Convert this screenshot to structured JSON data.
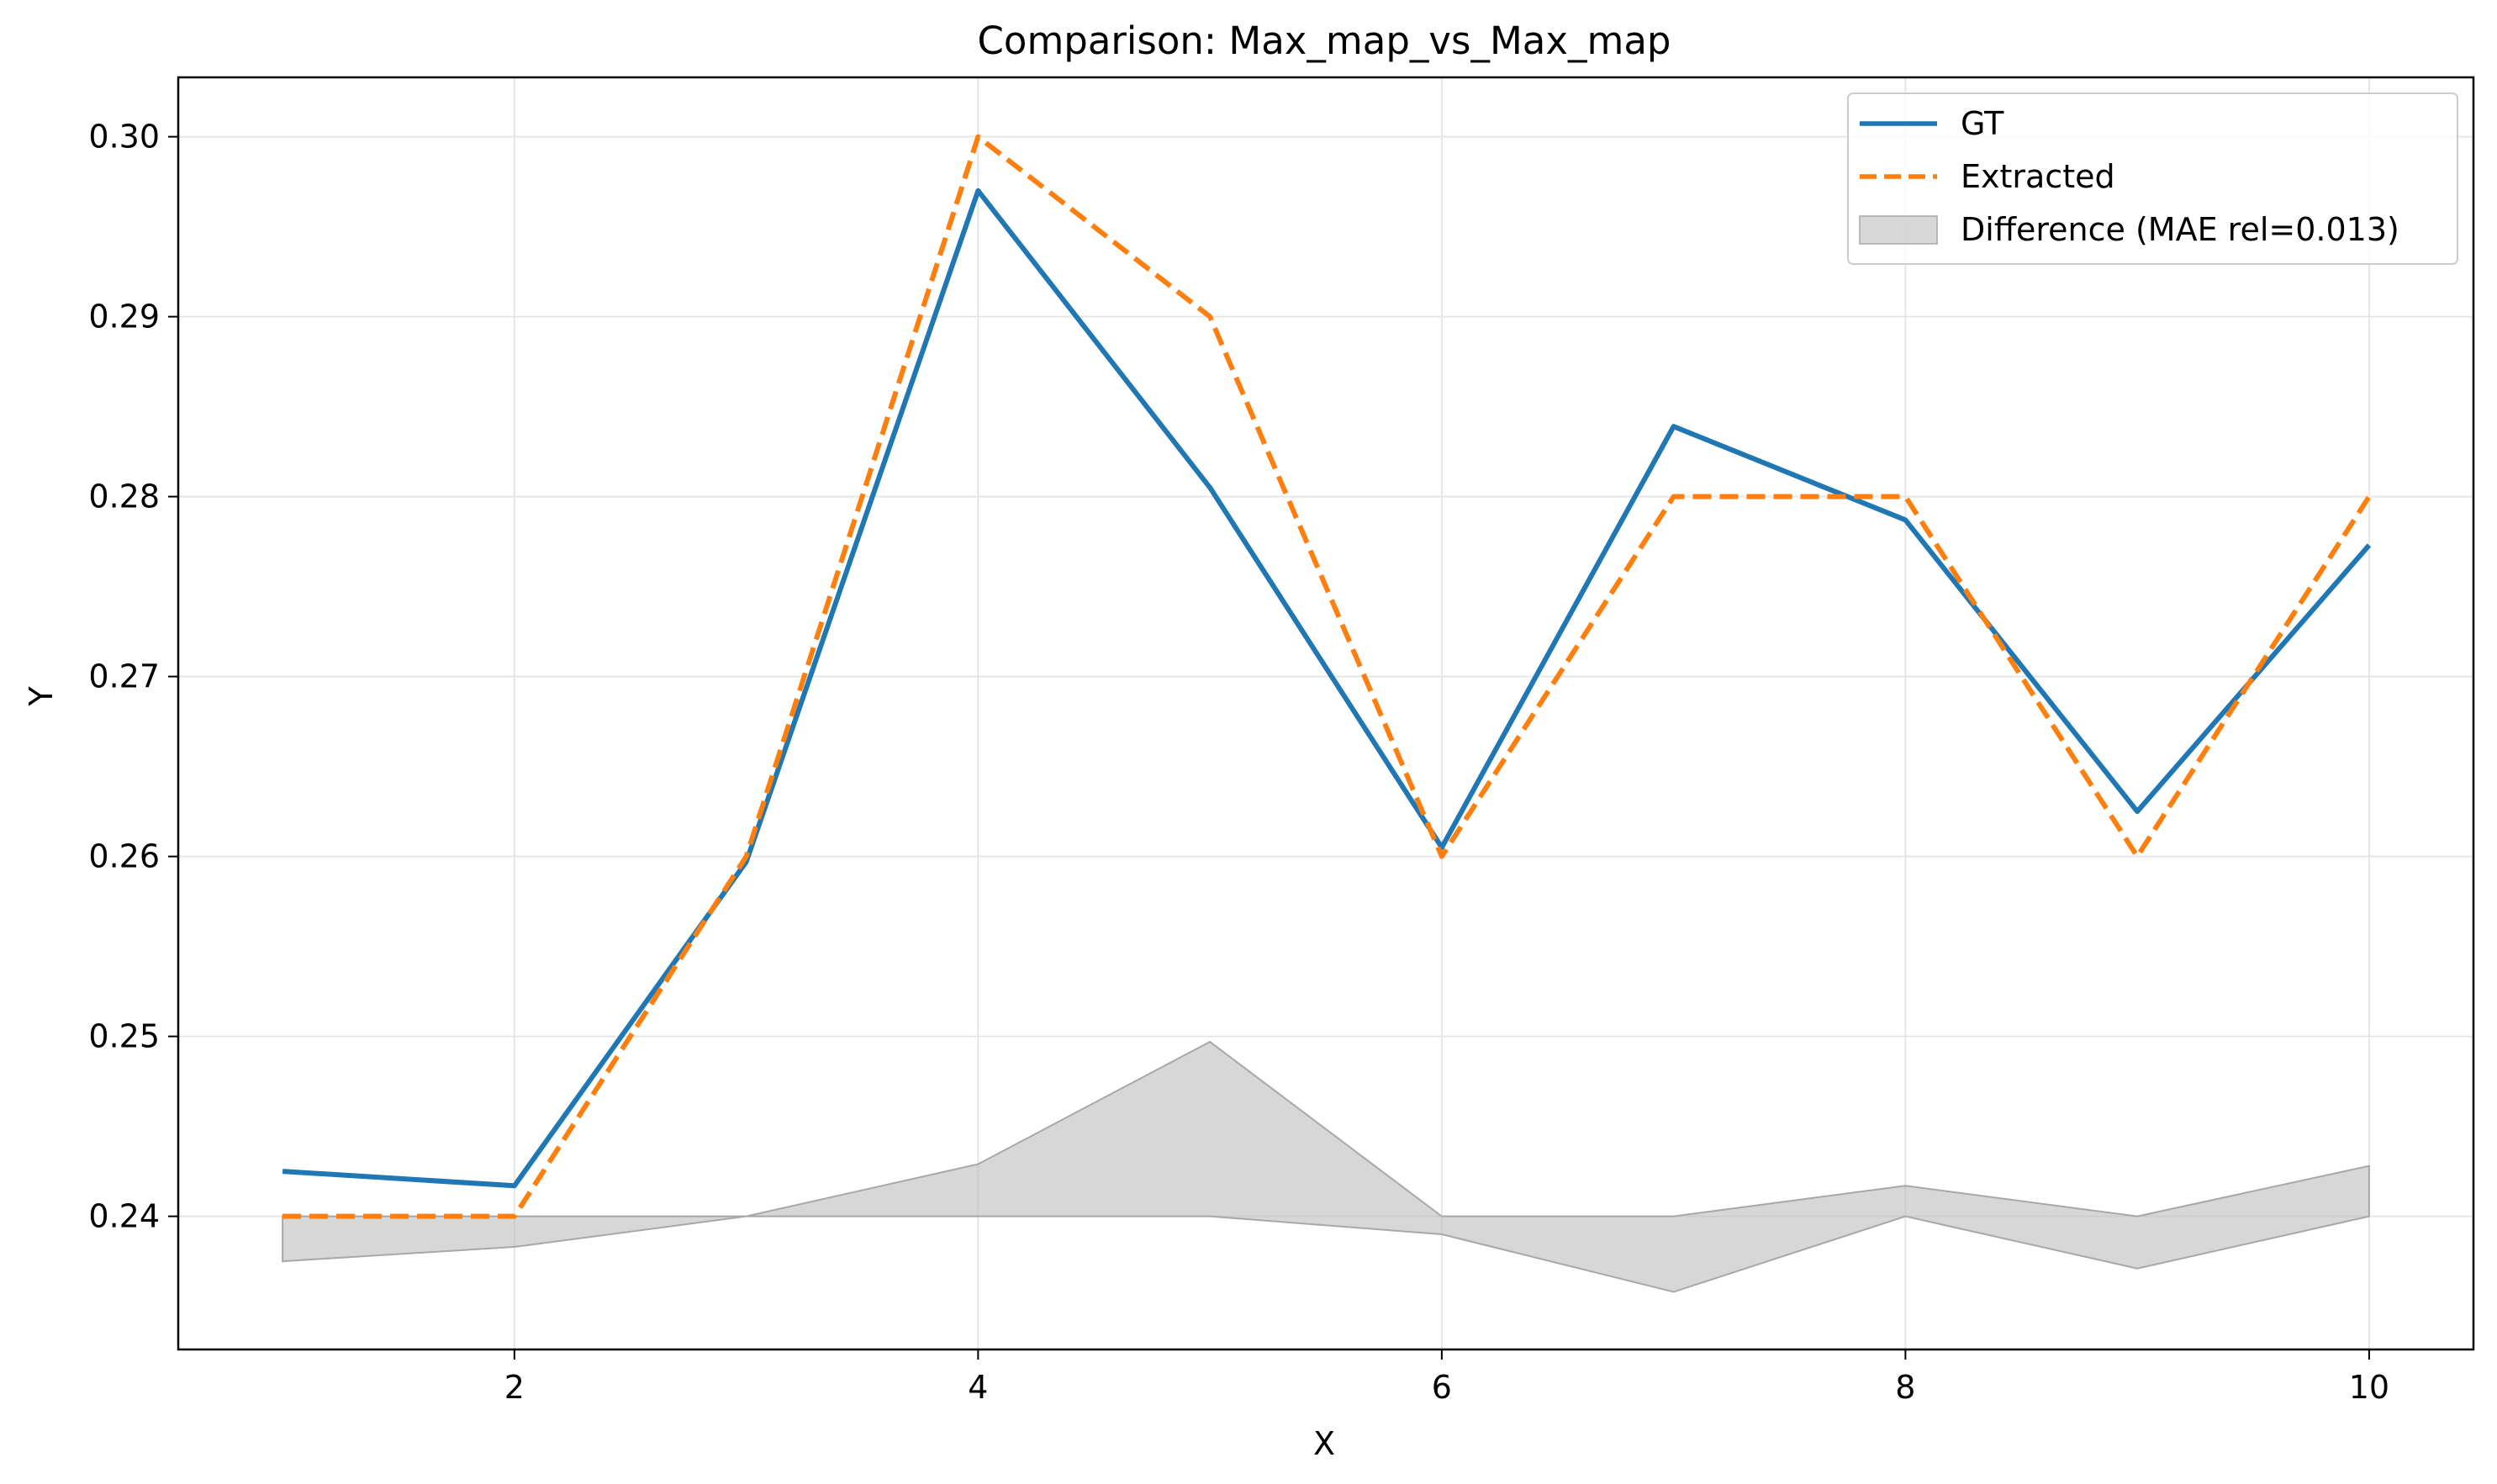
{
  "chart_data": {
    "type": "line",
    "title": "Comparison: Max_map_vs_Max_map",
    "xlabel": "X",
    "ylabel": "Y",
    "xlim": [
      0.55,
      10.45
    ],
    "ylim": [
      0.2326,
      0.3033
    ],
    "xticks": [
      2,
      4,
      6,
      8,
      10
    ],
    "yticks": [
      0.24,
      0.25,
      0.26,
      0.27,
      0.28,
      0.29,
      0.3
    ],
    "ytick_labels": [
      "0.24",
      "0.25",
      "0.26",
      "0.27",
      "0.28",
      "0.29",
      "0.30"
    ],
    "grid": true,
    "legend_position": "top-right",
    "x": [
      1,
      2,
      3,
      4,
      5,
      6,
      7,
      8,
      9,
      10
    ],
    "series": [
      {
        "name": "GT",
        "style": "solid",
        "color": "#1f77b4",
        "values": [
          0.2425,
          0.2417,
          0.2597,
          0.297,
          0.2805,
          0.2605,
          0.2839,
          0.2787,
          0.2625,
          0.2773
        ]
      },
      {
        "name": "Extracted",
        "style": "dashed",
        "color": "#ff7f0e",
        "values": [
          0.24,
          0.24,
          0.26,
          0.3,
          0.29,
          0.26,
          0.28,
          0.28,
          0.26,
          0.28
        ]
      }
    ],
    "difference": {
      "name": "Difference (MAE rel=0.013)",
      "baseline": 0.24,
      "color": "#bdbdbd",
      "upper": [
        0.24,
        0.24,
        0.24,
        0.2429,
        0.2497,
        0.24,
        0.24,
        0.2417,
        0.24,
        0.2428
      ],
      "lower": [
        0.2375,
        0.2383,
        0.24,
        0.24,
        0.24,
        0.239,
        0.2358,
        0.24,
        0.2371,
        0.24
      ]
    }
  }
}
